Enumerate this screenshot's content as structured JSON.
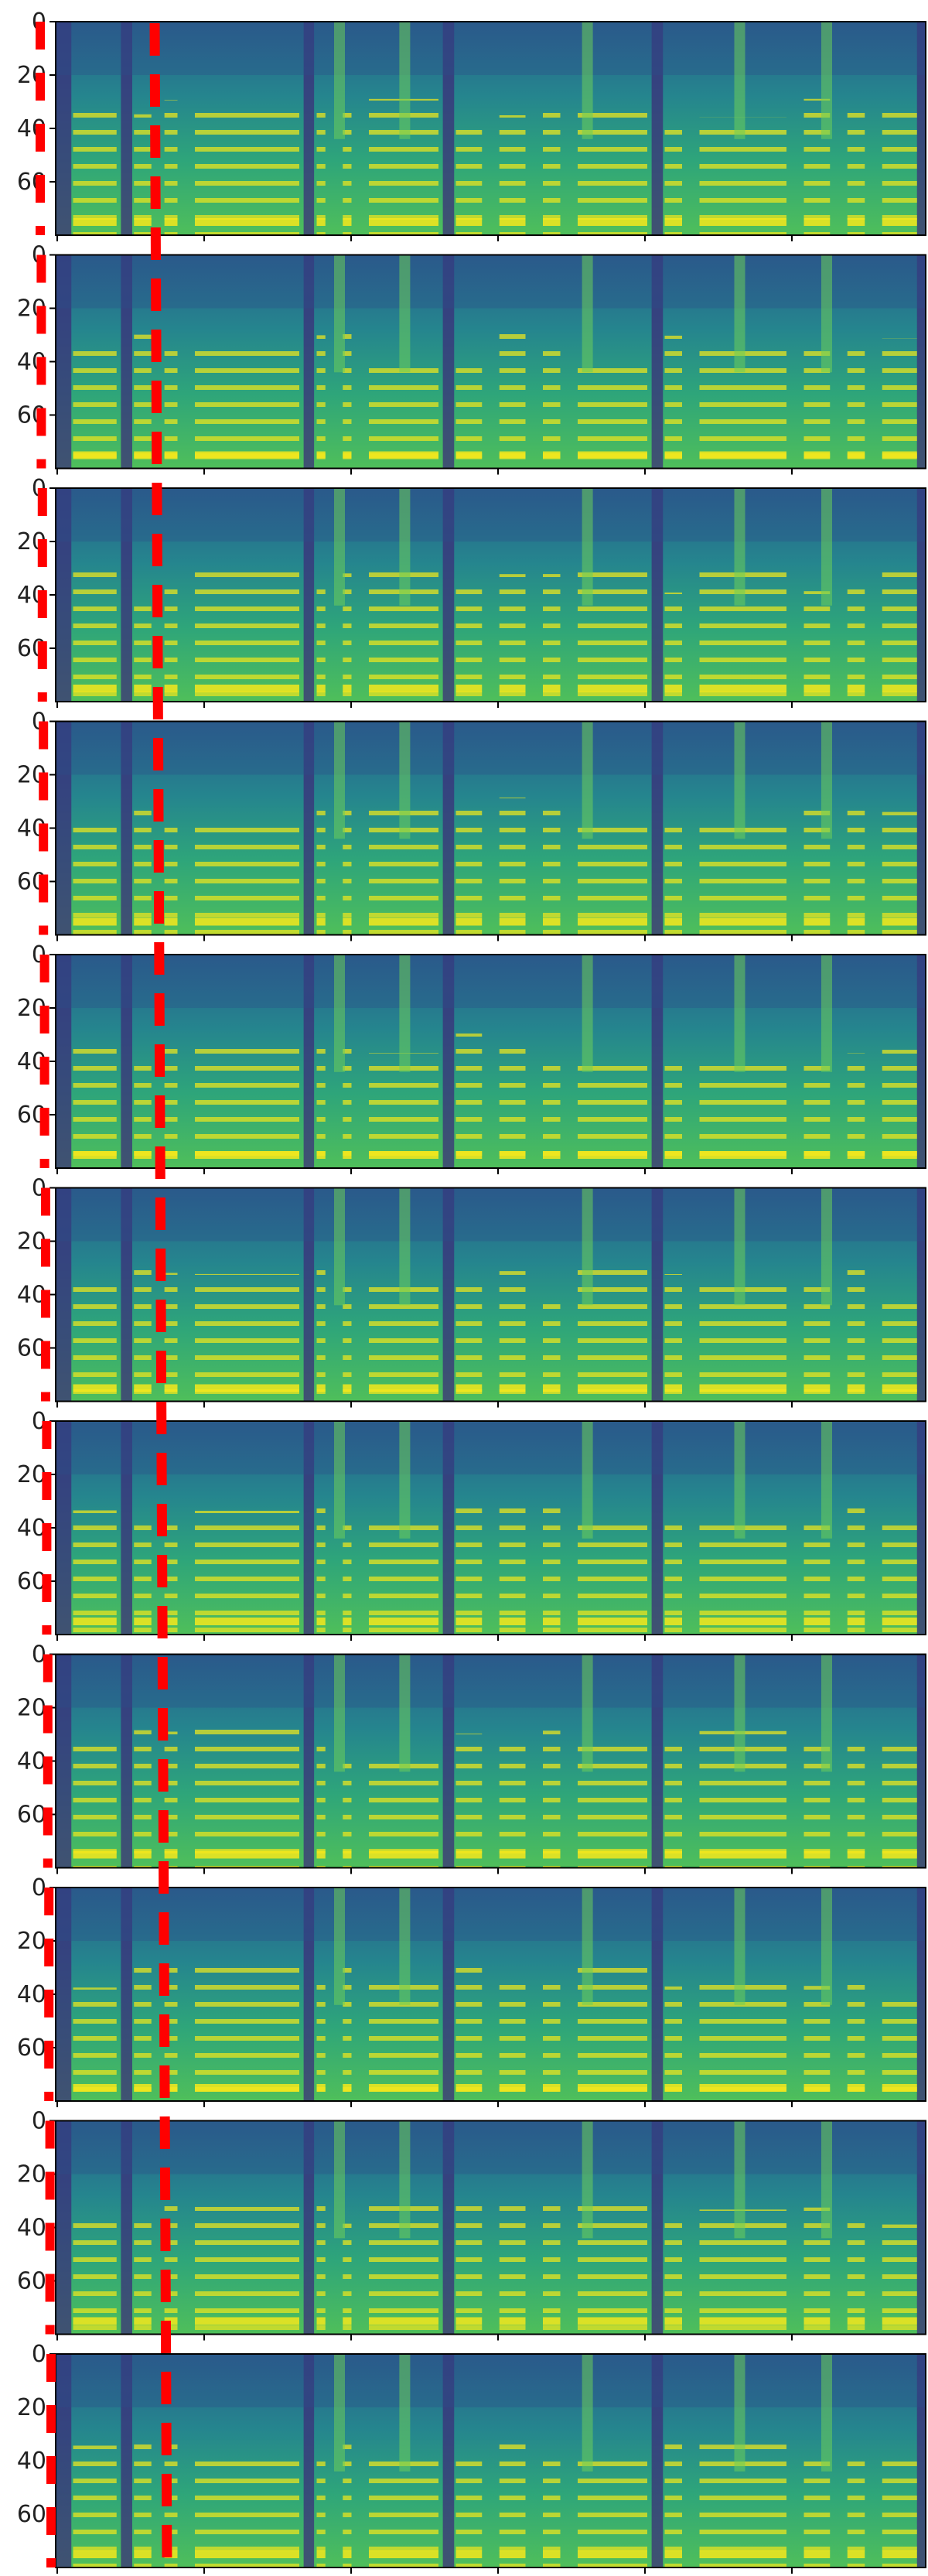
{
  "chart_data": {
    "type": "heatmap",
    "colormap": "viridis",
    "panel_count": 11,
    "y_ticks": [
      "0",
      "20",
      "40",
      "60"
    ],
    "y_range": [
      0,
      80
    ],
    "y_inverted": true,
    "x_tick_labels_shown": false,
    "annotation": "red dashed vertical line",
    "colors": {
      "annotation": "#ff0000",
      "frame": "#000000",
      "low": "#440154",
      "mid": "#21908d",
      "high": "#fde725"
    }
  }
}
